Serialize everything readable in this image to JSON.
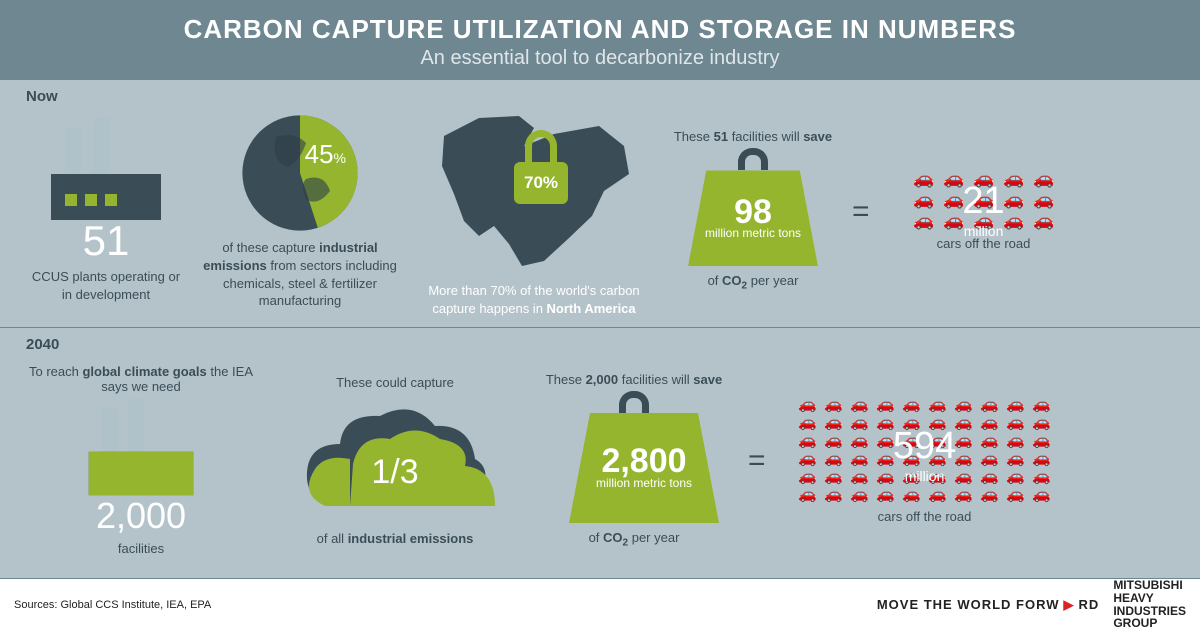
{
  "colors": {
    "header_bg": "#6e8791",
    "band_bg": "#b4c3ca",
    "dark": "#3a4d57",
    "green": "#95b52f",
    "white": "#ffffff",
    "car": "#6e8791"
  },
  "header": {
    "title": "CARBON CAPTURE UTILIZATION AND STORAGE IN NUMBERS",
    "subtitle": "An essential tool to decarbonize industry"
  },
  "now": {
    "label": "Now",
    "plants": {
      "number": "51",
      "caption": "CCUS plants operating or in development"
    },
    "pie": {
      "percent": 45,
      "label": "45",
      "unit": "%",
      "caption_html": "of these capture <b>industrial emissions</b> from sectors including chemicals, steel & fertilizer manufacturing"
    },
    "map": {
      "percent": "70%",
      "caption_html": "More than 70% of the world's carbon capture happens in <b>North America</b>"
    },
    "weight": {
      "pre_html": "These <b>51</b> facilities will <b>save</b>",
      "number": "98",
      "unit": "million metric tons",
      "caption_html": "of <b>CO<span class='sub'>2</span></b> per year"
    },
    "cars": {
      "rows": 3,
      "cols": 5,
      "overlay_number": "21",
      "overlay_unit": "million",
      "caption": "cars off the road"
    }
  },
  "future": {
    "label": "2040",
    "plants": {
      "pre_html": "To reach <b>global climate goals</b> the IEA says we need",
      "number": "2,000",
      "caption": "facilities"
    },
    "cloud": {
      "pre": "These could capture",
      "fraction": "1/3",
      "caption_html": "of all <b>industrial emissions</b>"
    },
    "weight": {
      "pre_html": "These <b>2,000</b> facilities will <b>save</b>",
      "number": "2,800",
      "unit": "million metric tons",
      "caption_html": "of <b>CO<span class='sub'>2</span></b> per year"
    },
    "cars": {
      "rows": 6,
      "cols": 10,
      "overlay_number": "594",
      "overlay_unit": "million",
      "caption": "cars off the road"
    }
  },
  "footer": {
    "sources": "Sources: Global CCS Institute, IEA, EPA",
    "tagline_a": "MOVE THE WORLD FORW",
    "tagline_b": "RD",
    "brand": "MITSUBISHI HEAVY INDUSTRIES GROUP"
  }
}
